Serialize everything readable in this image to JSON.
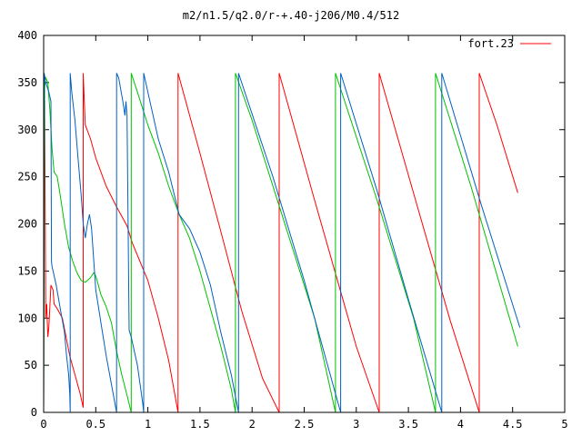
{
  "chart_data": {
    "type": "line",
    "title": "m2/n1.5/q2.0/r-+.40-j206/M0.4/512",
    "xlabel": "",
    "ylabel": "",
    "xlim": [
      0,
      5
    ],
    "ylim": [
      0,
      400
    ],
    "grid": false,
    "legend_position": "top-right",
    "x_ticks": [
      {
        "value": 0,
        "label": "0"
      },
      {
        "value": 0.5,
        "label": "0.5"
      },
      {
        "value": 1,
        "label": "1"
      },
      {
        "value": 1.5,
        "label": "1.5"
      },
      {
        "value": 2,
        "label": "2"
      },
      {
        "value": 2.5,
        "label": "2.5"
      },
      {
        "value": 3,
        "label": "3"
      },
      {
        "value": 3.5,
        "label": "3.5"
      },
      {
        "value": 4,
        "label": "4"
      },
      {
        "value": 4.5,
        "label": "4.5"
      },
      {
        "value": 5,
        "label": "5"
      }
    ],
    "y_ticks": [
      {
        "value": 0,
        "label": "0"
      },
      {
        "value": 50,
        "label": "50"
      },
      {
        "value": 100,
        "label": "100"
      },
      {
        "value": 150,
        "label": "150"
      },
      {
        "value": 200,
        "label": "200"
      },
      {
        "value": 250,
        "label": "250"
      },
      {
        "value": 300,
        "label": "300"
      },
      {
        "value": 350,
        "label": "350"
      },
      {
        "value": 400,
        "label": "400"
      }
    ],
    "series": [
      {
        "key": "red",
        "name": "fort.23",
        "color": "#ff0000",
        "points": [
          [
            0,
            0
          ],
          [
            0.005,
            340
          ],
          [
            0.01,
            330
          ],
          [
            0.02,
            100
          ],
          [
            0.03,
            115
          ],
          [
            0.04,
            80
          ],
          [
            0.05,
            90
          ],
          [
            0.07,
            135
          ],
          [
            0.09,
            130
          ],
          [
            0.1,
            115
          ],
          [
            0.13,
            110
          ],
          [
            0.18,
            100
          ],
          [
            0.25,
            60
          ],
          [
            0.3,
            40
          ],
          [
            0.35,
            20
          ],
          [
            0.38,
            5
          ],
          [
            0.38,
            360
          ],
          [
            0.39,
            330
          ],
          [
            0.4,
            305
          ],
          [
            0.45,
            290
          ],
          [
            0.5,
            270
          ],
          [
            0.6,
            240
          ],
          [
            0.7,
            218
          ],
          [
            0.8,
            198
          ],
          [
            0.85,
            180
          ],
          [
            1.0,
            140
          ],
          [
            1.1,
            100
          ],
          [
            1.2,
            55
          ],
          [
            1.29,
            0
          ],
          [
            1.29,
            360
          ],
          [
            1.5,
            275
          ],
          [
            1.7,
            192
          ],
          [
            1.9,
            108
          ],
          [
            2.1,
            36
          ],
          [
            2.26,
            0
          ],
          [
            2.26,
            360
          ],
          [
            2.6,
            225
          ],
          [
            3.0,
            70
          ],
          [
            3.22,
            0
          ],
          [
            3.22,
            360
          ],
          [
            3.6,
            213
          ],
          [
            3.9,
            98
          ],
          [
            4.18,
            0
          ],
          [
            4.18,
            360
          ],
          [
            4.35,
            305
          ],
          [
            4.55,
            233
          ]
        ]
      },
      {
        "key": "green",
        "name": "",
        "color": "#00c000",
        "points": [
          [
            0,
            0
          ],
          [
            0.01,
            345
          ],
          [
            0.02,
            355
          ],
          [
            0.04,
            350
          ],
          [
            0.06,
            320
          ],
          [
            0.08,
            280
          ],
          [
            0.1,
            255
          ],
          [
            0.13,
            250
          ],
          [
            0.16,
            230
          ],
          [
            0.2,
            200
          ],
          [
            0.24,
            175
          ],
          [
            0.28,
            160
          ],
          [
            0.32,
            148
          ],
          [
            0.36,
            140
          ],
          [
            0.4,
            138
          ],
          [
            0.45,
            143
          ],
          [
            0.48,
            148
          ],
          [
            0.5,
            145
          ],
          [
            0.55,
            125
          ],
          [
            0.6,
            112
          ],
          [
            0.65,
            95
          ],
          [
            0.7,
            65
          ],
          [
            0.75,
            40
          ],
          [
            0.8,
            18
          ],
          [
            0.84,
            0
          ],
          [
            0.84,
            360
          ],
          [
            0.9,
            340
          ],
          [
            1.0,
            305
          ],
          [
            1.1,
            275
          ],
          [
            1.2,
            240
          ],
          [
            1.3,
            210
          ],
          [
            1.4,
            185
          ],
          [
            1.5,
            150
          ],
          [
            1.6,
            110
          ],
          [
            1.7,
            70
          ],
          [
            1.8,
            25
          ],
          [
            1.84,
            0
          ],
          [
            1.84,
            360
          ],
          [
            2.0,
            310
          ],
          [
            2.3,
            205
          ],
          [
            2.6,
            100
          ],
          [
            2.8,
            0
          ],
          [
            2.8,
            360
          ],
          [
            3.2,
            225
          ],
          [
            3.55,
            100
          ],
          [
            3.76,
            0
          ],
          [
            3.76,
            360
          ],
          [
            4.1,
            240
          ],
          [
            4.55,
            70
          ]
        ]
      },
      {
        "key": "blue",
        "name": "",
        "color": "#0060c0",
        "points": [
          [
            0,
            0
          ],
          [
            0.005,
            360
          ],
          [
            0.02,
            350
          ],
          [
            0.05,
            340
          ],
          [
            0.07,
            330
          ],
          [
            0.075,
            160
          ],
          [
            0.08,
            155
          ],
          [
            0.12,
            135
          ],
          [
            0.16,
            110
          ],
          [
            0.2,
            85
          ],
          [
            0.22,
            60
          ],
          [
            0.24,
            40
          ],
          [
            0.25,
            20
          ],
          [
            0.255,
            0
          ],
          [
            0.255,
            360
          ],
          [
            0.27,
            340
          ],
          [
            0.3,
            310
          ],
          [
            0.33,
            270
          ],
          [
            0.36,
            230
          ],
          [
            0.38,
            200
          ],
          [
            0.4,
            185
          ],
          [
            0.42,
            200
          ],
          [
            0.44,
            210
          ],
          [
            0.46,
            195
          ],
          [
            0.5,
            130
          ],
          [
            0.55,
            95
          ],
          [
            0.6,
            60
          ],
          [
            0.65,
            30
          ],
          [
            0.7,
            0
          ],
          [
            0.7,
            360
          ],
          [
            0.72,
            355
          ],
          [
            0.76,
            330
          ],
          [
            0.78,
            315
          ],
          [
            0.79,
            330
          ],
          [
            0.8,
            315
          ],
          [
            0.82,
            87
          ],
          [
            0.84,
            80
          ],
          [
            0.9,
            50
          ],
          [
            0.95,
            10
          ],
          [
            0.96,
            0
          ],
          [
            0.96,
            360
          ],
          [
            1.0,
            340
          ],
          [
            1.1,
            290
          ],
          [
            1.2,
            255
          ],
          [
            1.3,
            210
          ],
          [
            1.4,
            195
          ],
          [
            1.5,
            170
          ],
          [
            1.6,
            135
          ],
          [
            1.7,
            85
          ],
          [
            1.8,
            40
          ],
          [
            1.87,
            0
          ],
          [
            1.87,
            360
          ],
          [
            2.2,
            250
          ],
          [
            2.5,
            140
          ],
          [
            2.85,
            0
          ],
          [
            2.85,
            360
          ],
          [
            3.2,
            235
          ],
          [
            3.5,
            120
          ],
          [
            3.82,
            0
          ],
          [
            3.82,
            360
          ],
          [
            4.2,
            220
          ],
          [
            4.57,
            90
          ]
        ]
      }
    ]
  }
}
